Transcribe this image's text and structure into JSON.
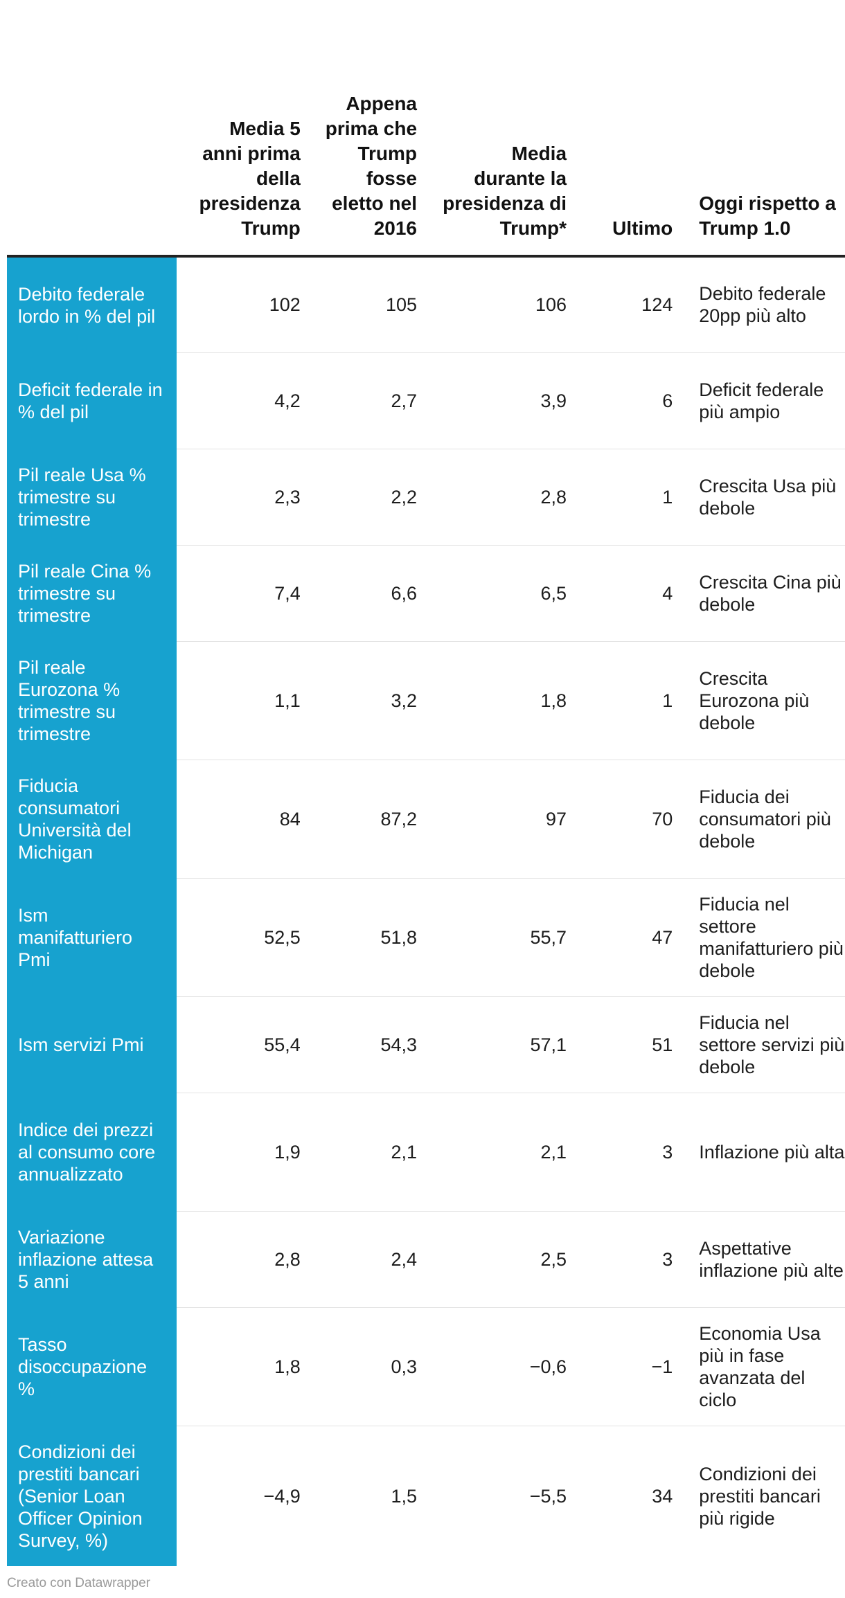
{
  "table": {
    "headers": [
      "",
      "Media 5 anni prima della presidenza Trump",
      "Appena prima che Trump fosse eletto nel 2016",
      "Media durante la presidenza di Trump*",
      "Ultimo",
      "Oggi rispetto a Trump 1.0"
    ],
    "rows": [
      {
        "label": "Debito federale lordo in % del pil",
        "values": [
          "102",
          "105",
          "106",
          "124"
        ],
        "note": "Debito federale 20pp più alto"
      },
      {
        "label": "Deficit federale in % del pil",
        "values": [
          "4,2",
          "2,7",
          "3,9",
          "6"
        ],
        "note": "Deficit federale più ampio"
      },
      {
        "label": "Pil reale Usa % trimestre su trimestre",
        "values": [
          "2,3",
          "2,2",
          "2,8",
          "1"
        ],
        "note": "Crescita Usa più debole"
      },
      {
        "label": "Pil reale Cina % trimestre su trimestre",
        "values": [
          "7,4",
          "6,6",
          "6,5",
          "4"
        ],
        "note": "Crescita Cina più debole"
      },
      {
        "label": "Pil reale Eurozona % trimestre su trimestre",
        "values": [
          "1,1",
          "3,2",
          "1,8",
          "1"
        ],
        "note": "Crescita Eurozona più debole"
      },
      {
        "label": "Fiducia consumatori Università del Michigan",
        "values": [
          "84",
          "87,2",
          "97",
          "70"
        ],
        "note": "Fiducia dei consumatori più debole"
      },
      {
        "label": "Ism manifatturiero Pmi",
        "values": [
          "52,5",
          "51,8",
          "55,7",
          "47"
        ],
        "note": "Fiducia nel settore manifatturiero più debole"
      },
      {
        "label": "Ism servizi Pmi",
        "values": [
          "55,4",
          "54,3",
          "57,1",
          "51"
        ],
        "note": "Fiducia nel settore servizi più debole"
      },
      {
        "label": "Indice dei prezzi al consumo core annualizzato",
        "values": [
          "1,9",
          "2,1",
          "2,1",
          "3"
        ],
        "note": "Inflazione più alta"
      },
      {
        "label": "Variazione inflazione attesa 5 anni",
        "values": [
          "2,8",
          "2,4",
          "2,5",
          "3"
        ],
        "note": "Aspettative inflazione più alte"
      },
      {
        "label": "Tasso disoccupazione %",
        "values": [
          "1,8",
          "0,3",
          "−0,6",
          "−1"
        ],
        "note": "Economia Usa più in fase avanzata del ciclo"
      },
      {
        "label": "Condizioni dei prestiti bancari (Senior Loan Officer Opinion Survey, %)",
        "values": [
          "−4,9",
          "1,5",
          "−5,5",
          "34"
        ],
        "note": "Condizioni dei prestiti bancari più rigide"
      }
    ]
  },
  "footer": {
    "credit": "Creato con Datawrapper"
  },
  "colors": {
    "label_bg": "#17a2cf",
    "label_text": "#ffffff",
    "header_rule": "#222222"
  }
}
